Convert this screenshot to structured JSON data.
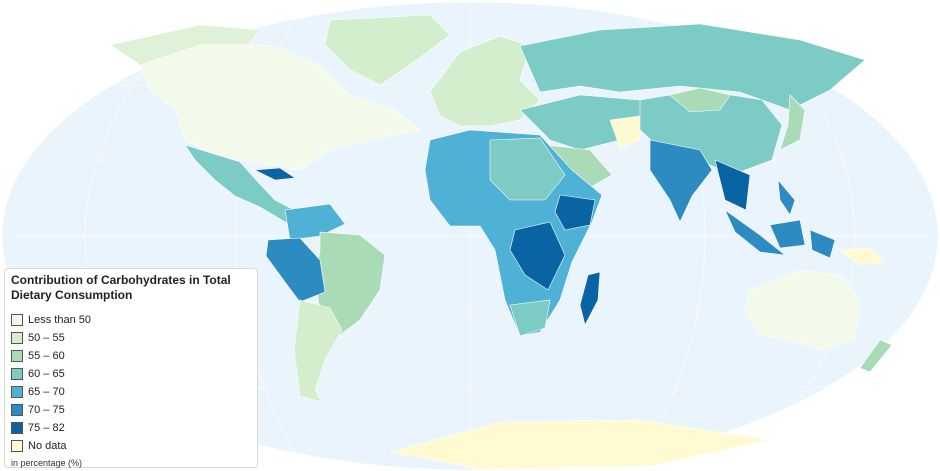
{
  "legend": {
    "title": "Contribution of Carbohydrates in Total Dietary Consumption",
    "items": [
      {
        "label": "Less than 50",
        "color": "#f3faea"
      },
      {
        "label": "50 – 55",
        "color": "#d3eecd"
      },
      {
        "label": "55 – 60",
        "color": "#a9dcb6"
      },
      {
        "label": "60 – 65",
        "color": "#7ccbc4"
      },
      {
        "label": "65 – 70",
        "color": "#4fb1d6"
      },
      {
        "label": "70 – 75",
        "color": "#2c8bc1"
      },
      {
        "label": "75 – 82",
        "color": "#0a63a3"
      },
      {
        "label": "No data",
        "color": "#fffad2"
      }
    ],
    "note": "in percentage (%)"
  }
}
